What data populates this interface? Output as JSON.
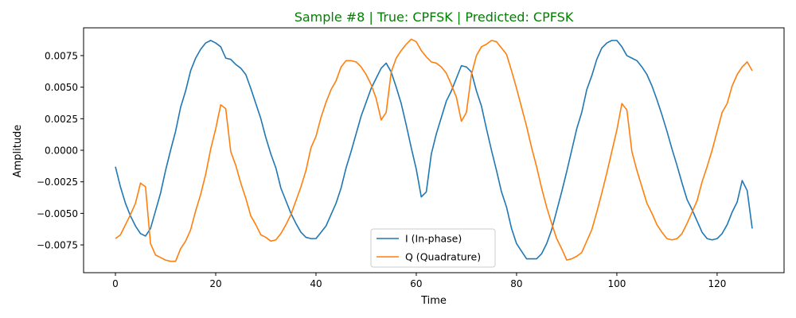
{
  "chart_data": {
    "type": "line",
    "title": "Sample #8 | True: CPFSK | Predicted: CPFSK",
    "title_color": "#008000",
    "xlabel": "Time",
    "ylabel": "Amplitude",
    "xlim": [
      -6.35,
      133.35
    ],
    "ylim": [
      -0.0097,
      0.0097
    ],
    "xticks": [
      0,
      20,
      40,
      60,
      80,
      100,
      120
    ],
    "yticks": [
      -0.0075,
      -0.005,
      -0.0025,
      0.0,
      0.0025,
      0.005,
      0.0075
    ],
    "ytick_labels": [
      "−0.0075",
      "−0.0050",
      "−0.0025",
      "0.0000",
      "0.0025",
      "0.0050",
      "0.0075"
    ],
    "xtick_labels": [
      "0",
      "20",
      "40",
      "60",
      "80",
      "100",
      "120"
    ],
    "grid": false,
    "legend_position": "lower-center",
    "series": [
      {
        "name": "I (In-phase)",
        "color": "#1f77b4",
        "x": [
          0,
          1,
          2,
          3,
          4,
          5,
          6,
          7,
          8,
          9,
          10,
          11,
          12,
          13,
          14,
          15,
          16,
          17,
          18,
          19,
          20,
          21,
          22,
          23,
          24,
          25,
          26,
          27,
          28,
          29,
          30,
          31,
          32,
          33,
          34,
          35,
          36,
          37,
          38,
          39,
          40,
          41,
          42,
          43,
          44,
          45,
          46,
          47,
          48,
          49,
          50,
          51,
          52,
          53,
          54,
          55,
          56,
          57,
          58,
          59,
          60,
          61,
          62,
          63,
          64,
          65,
          66,
          67,
          68,
          69,
          70,
          71,
          72,
          73,
          74,
          75,
          76,
          77,
          78,
          79,
          80,
          81,
          82,
          83,
          84,
          85,
          86,
          87,
          88,
          89,
          90,
          91,
          92,
          93,
          94,
          95,
          96,
          97,
          98,
          99,
          100,
          101,
          102,
          103,
          104,
          105,
          106,
          107,
          108,
          109,
          110,
          111,
          112,
          113,
          114,
          115,
          116,
          117,
          118,
          119,
          120,
          121,
          122,
          123,
          124,
          125,
          126,
          127
        ],
        "y": [
          -0.0013,
          -0.0029,
          -0.0042,
          -0.0052,
          -0.006,
          -0.0066,
          -0.0068,
          -0.0062,
          -0.0048,
          -0.0034,
          -0.0016,
          0.0,
          0.0015,
          0.0034,
          0.0047,
          0.0063,
          0.0073,
          0.008,
          0.0085,
          0.0087,
          0.0085,
          0.0082,
          0.0073,
          0.0072,
          0.0068,
          0.0065,
          0.006,
          0.0049,
          0.0037,
          0.0025,
          0.001,
          -0.0003,
          -0.0014,
          -0.003,
          -0.004,
          -0.005,
          -0.0058,
          -0.0065,
          -0.0069,
          -0.007,
          -0.007,
          -0.0065,
          -0.006,
          -0.0051,
          -0.0042,
          -0.003,
          -0.0014,
          -0.0001,
          0.0013,
          0.0027,
          0.0038,
          0.0049,
          0.0057,
          0.0065,
          0.0069,
          0.0062,
          0.005,
          0.0037,
          0.002,
          0.0002,
          -0.0015,
          -0.0037,
          -0.0033,
          -0.0003,
          0.0013,
          0.0026,
          0.0039,
          0.0047,
          0.0057,
          0.0067,
          0.0066,
          0.0062,
          0.0047,
          0.0035,
          0.0017,
          0.0,
          -0.0016,
          -0.0033,
          -0.0045,
          -0.0062,
          -0.0074,
          -0.008,
          -0.0086,
          -0.0086,
          -0.0086,
          -0.0082,
          -0.0074,
          -0.0063,
          -0.0048,
          -0.0033,
          -0.0017,
          0.0,
          0.0017,
          0.003,
          0.0048,
          0.0059,
          0.0072,
          0.0081,
          0.0085,
          0.0087,
          0.0087,
          0.0082,
          0.0075,
          0.0073,
          0.0071,
          0.0066,
          0.006,
          0.0051,
          0.004,
          0.0028,
          0.0015,
          0.0001,
          -0.0012,
          -0.0026,
          -0.0039,
          -0.0047,
          -0.0056,
          -0.0065,
          -0.007,
          -0.0071,
          -0.007,
          -0.0066,
          -0.0059,
          -0.0049,
          -0.0041,
          -0.0024,
          -0.0032,
          -0.0062
        ]
      },
      {
        "name": "Q (Quadrature)",
        "color": "#ff7f0e",
        "x": [
          0,
          1,
          2,
          3,
          4,
          5,
          6,
          7,
          8,
          9,
          10,
          11,
          12,
          13,
          14,
          15,
          16,
          17,
          18,
          19,
          20,
          21,
          22,
          23,
          24,
          25,
          26,
          27,
          28,
          29,
          30,
          31,
          32,
          33,
          34,
          35,
          36,
          37,
          38,
          39,
          40,
          41,
          42,
          43,
          44,
          45,
          46,
          47,
          48,
          49,
          50,
          51,
          52,
          53,
          54,
          55,
          56,
          57,
          58,
          59,
          60,
          61,
          62,
          63,
          64,
          65,
          66,
          67,
          68,
          69,
          70,
          71,
          72,
          73,
          74,
          75,
          76,
          77,
          78,
          79,
          80,
          81,
          82,
          83,
          84,
          85,
          86,
          87,
          88,
          89,
          90,
          91,
          92,
          93,
          94,
          95,
          96,
          97,
          98,
          99,
          100,
          101,
          102,
          103,
          104,
          105,
          106,
          107,
          108,
          109,
          110,
          111,
          112,
          113,
          114,
          115,
          116,
          117,
          118,
          119,
          120,
          121,
          122,
          123,
          124,
          125,
          126,
          127
        ],
        "y": [
          -0.007,
          -0.0067,
          -0.0059,
          -0.0051,
          -0.0042,
          -0.0026,
          -0.0029,
          -0.0074,
          -0.0083,
          -0.0085,
          -0.0087,
          -0.0088,
          -0.0088,
          -0.0078,
          -0.0072,
          -0.0063,
          -0.0048,
          -0.0035,
          -0.0019,
          0.0001,
          0.0017,
          0.0036,
          0.0033,
          -0.0001,
          -0.0012,
          -0.0026,
          -0.0038,
          -0.0052,
          -0.0059,
          -0.0067,
          -0.0069,
          -0.0072,
          -0.0071,
          -0.0066,
          -0.0059,
          -0.0051,
          -0.004,
          -0.0029,
          -0.0016,
          0.0002,
          0.0011,
          0.0026,
          0.0038,
          0.0048,
          0.0055,
          0.0066,
          0.0071,
          0.0071,
          0.007,
          0.0066,
          0.006,
          0.0052,
          0.0041,
          0.0024,
          0.003,
          0.0062,
          0.0073,
          0.0079,
          0.0084,
          0.0088,
          0.0086,
          0.0079,
          0.0074,
          0.007,
          0.0069,
          0.0066,
          0.0061,
          0.0052,
          0.0042,
          0.0023,
          0.003,
          0.006,
          0.0075,
          0.0082,
          0.0084,
          0.0087,
          0.0086,
          0.0081,
          0.0076,
          0.0063,
          0.0049,
          0.0034,
          0.0019,
          0.0002,
          -0.0013,
          -0.003,
          -0.0045,
          -0.0058,
          -0.007,
          -0.0078,
          -0.0087,
          -0.0086,
          -0.0084,
          -0.0081,
          -0.0072,
          -0.0063,
          -0.0049,
          -0.0034,
          -0.0018,
          -0.0001,
          0.0016,
          0.0037,
          0.0032,
          -0.0001,
          -0.0016,
          -0.0029,
          -0.0042,
          -0.005,
          -0.0059,
          -0.0065,
          -0.007,
          -0.0071,
          -0.007,
          -0.0066,
          -0.0058,
          -0.0049,
          -0.004,
          -0.0025,
          -0.0013,
          0.0,
          0.0015,
          0.003,
          0.0037,
          0.0051,
          0.006,
          0.0066,
          0.007,
          0.0063
        ]
      }
    ]
  }
}
